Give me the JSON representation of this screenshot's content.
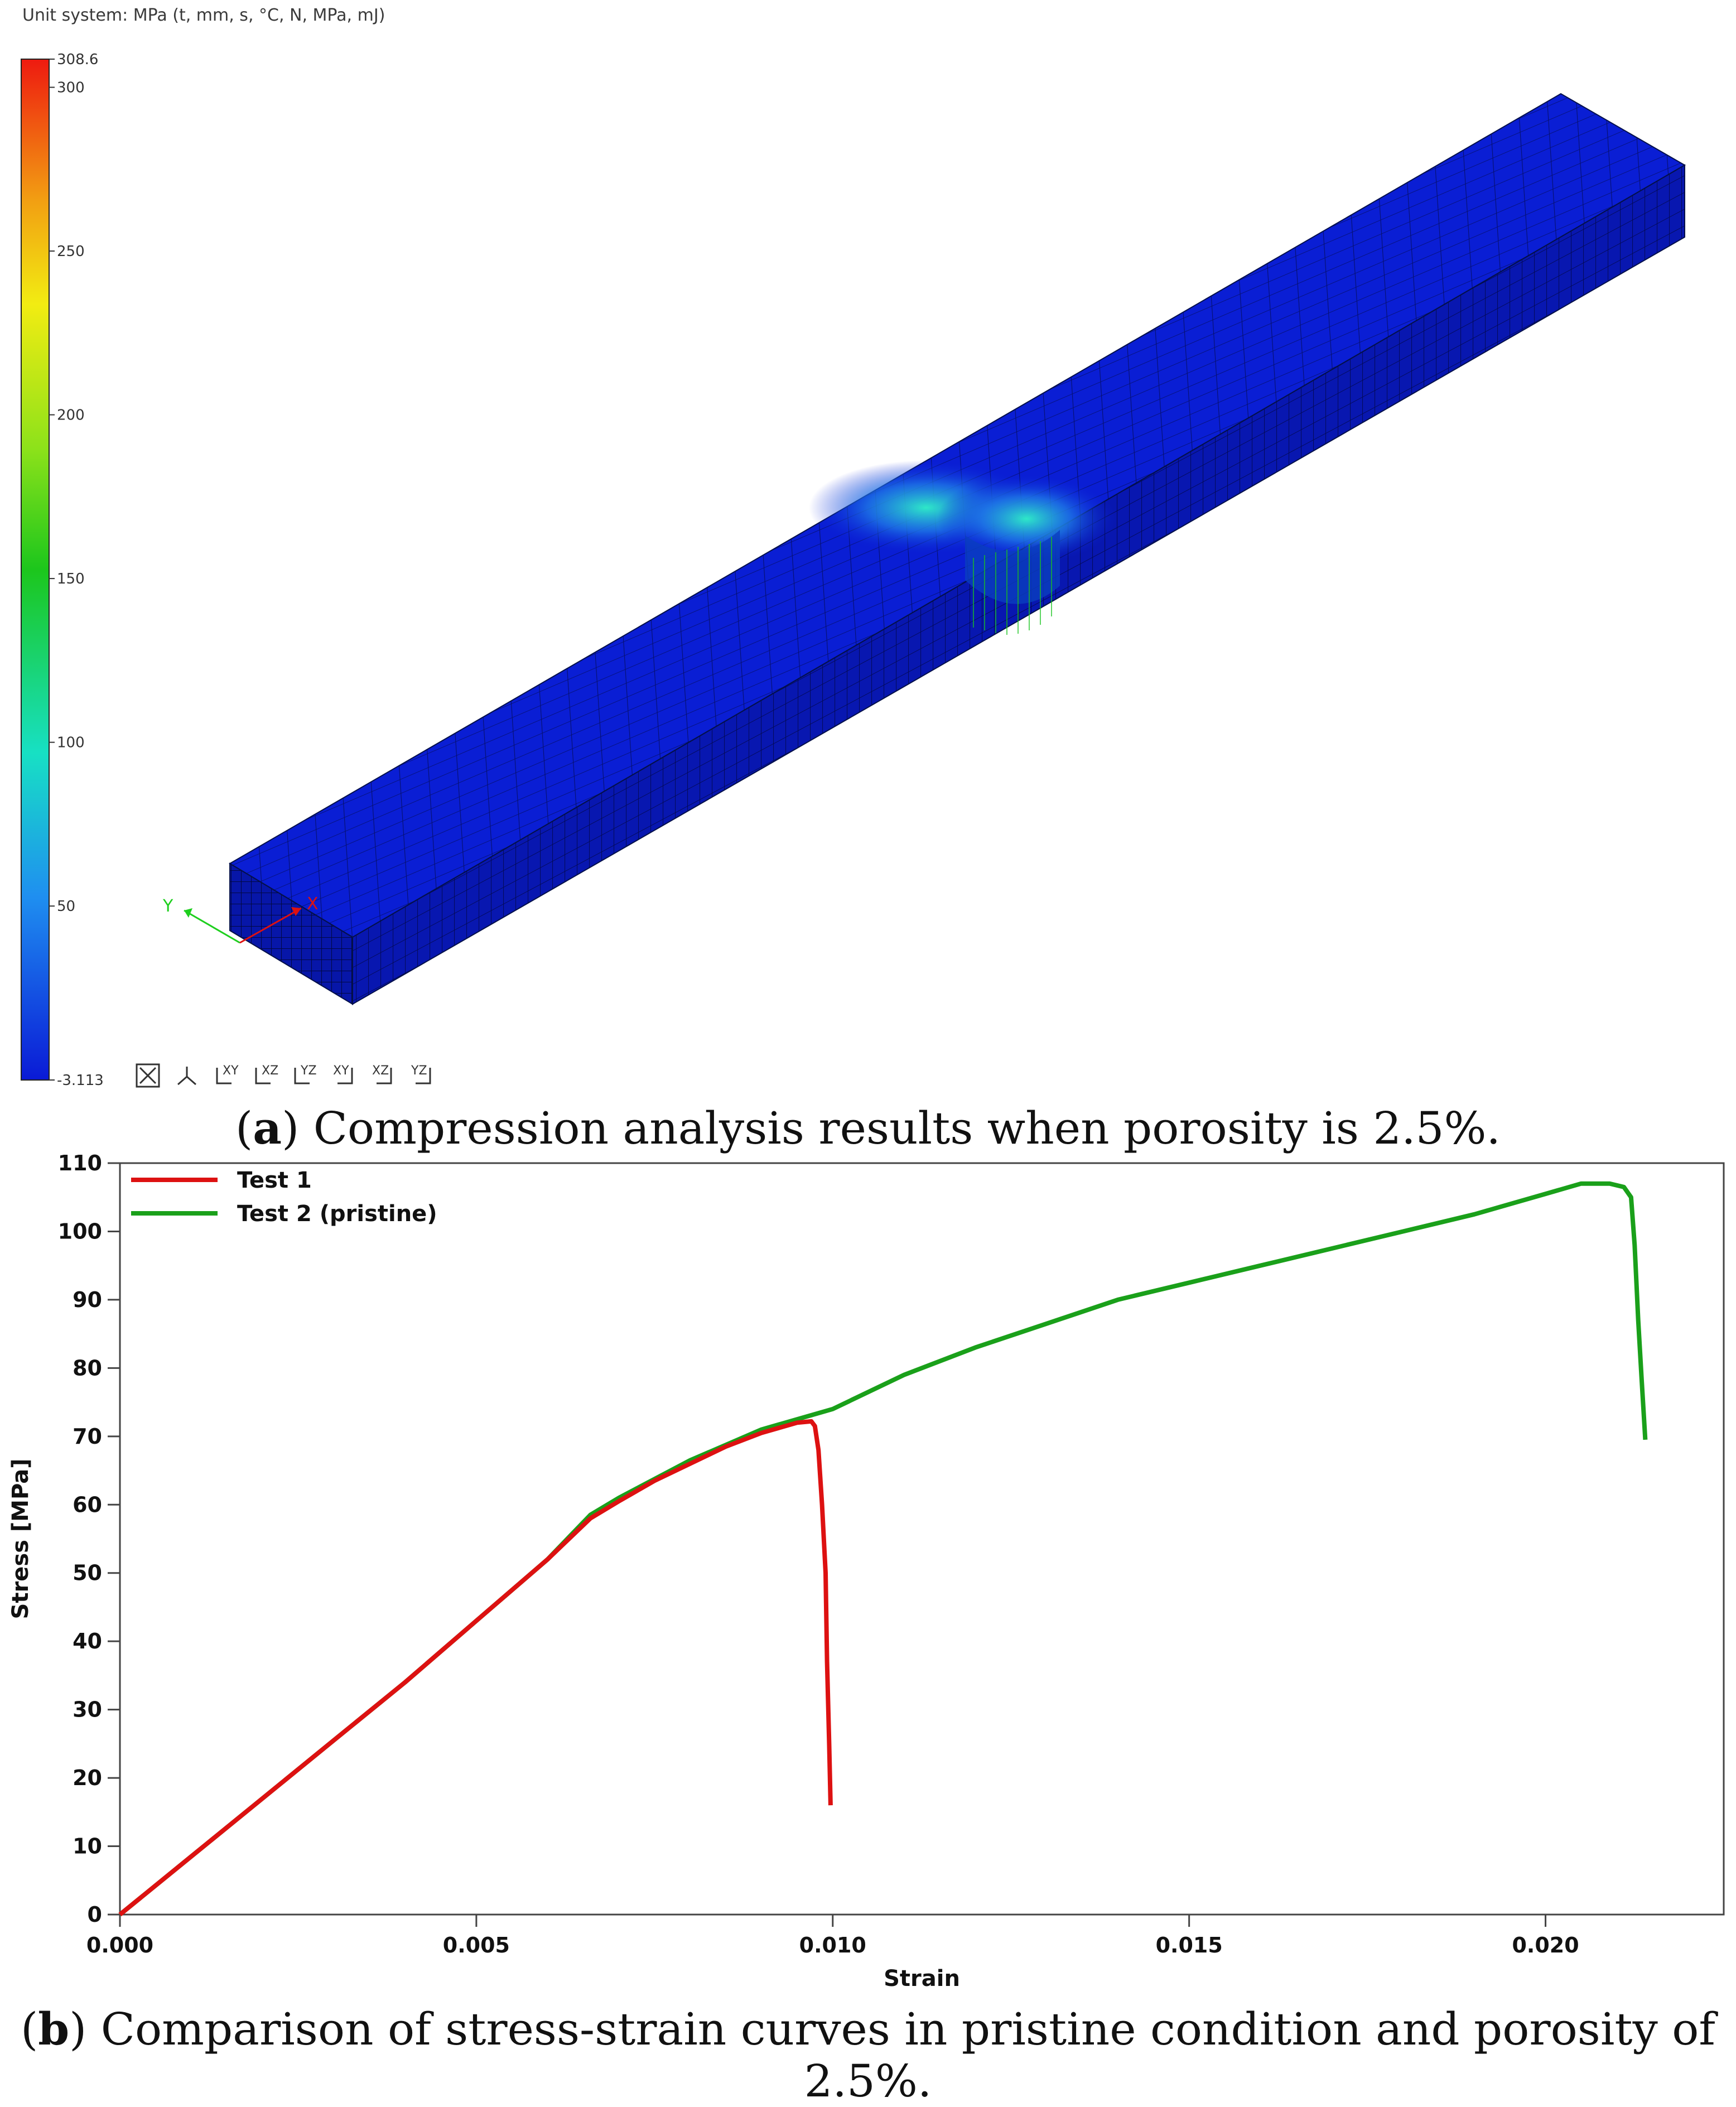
{
  "figure_a": {
    "unit_system": "Unit system: MPa (t, mm, s, °C, N, MPa, mJ)",
    "colorbar": {
      "max_label": "308.6",
      "min_label": "-3.113",
      "min": -3.113,
      "max": 308.6,
      "ticks": [
        "300",
        "250",
        "200",
        "150",
        "100",
        "50"
      ],
      "tick_values": [
        300,
        250,
        200,
        150,
        100,
        50
      ]
    },
    "axis_triad": {
      "x": "X",
      "y": "Y"
    },
    "view_icons": [
      "fit-view-icon",
      "isometric-view-icon",
      "xy-view-icon",
      "xz-view-icon",
      "yz-view-icon",
      "yx-view-icon",
      "zx-view-icon",
      "zy-view-icon"
    ],
    "view_icon_labels": [
      "XY",
      "XZ",
      "YZ",
      "XY",
      "XZ",
      "YZ"
    ],
    "caption_letter": "a",
    "caption_text": ") Compression analysis results when porosity is 2.5%."
  },
  "chart_data": {
    "type": "line",
    "xlabel": "Strain",
    "ylabel": "Stress [MPa]",
    "xlim": [
      0,
      0.0225
    ],
    "ylim": [
      0,
      110
    ],
    "xticks": [
      0,
      0.005,
      0.01,
      0.015,
      0.02
    ],
    "xtick_labels": [
      "0.000",
      "0.005",
      "0.010",
      "0.015",
      "0.020"
    ],
    "yticks": [
      0,
      10,
      20,
      30,
      40,
      50,
      60,
      70,
      80,
      90,
      100,
      110
    ],
    "ytick_labels": [
      "0",
      "10",
      "20",
      "30",
      "40",
      "50",
      "60",
      "70",
      "80",
      "90",
      "100",
      "110"
    ],
    "legend_position": "top-left",
    "grid": false,
    "series": [
      {
        "name": "Test 1",
        "color": "#dd1111",
        "x": [
          0.0,
          0.001,
          0.002,
          0.003,
          0.004,
          0.005,
          0.006,
          0.0066,
          0.007,
          0.0075,
          0.008,
          0.0085,
          0.009,
          0.0095,
          0.0097,
          0.00975,
          0.0098,
          0.00985,
          0.0099,
          0.00992,
          0.00995,
          0.00997
        ],
        "y": [
          0,
          8.5,
          17,
          25.5,
          34,
          43,
          52,
          58,
          60.5,
          63.5,
          66,
          68.5,
          70.5,
          72.0,
          72.2,
          71.5,
          68,
          60,
          50,
          37,
          25,
          16
        ]
      },
      {
        "name": "Test 2 (pristine)",
        "color": "#1aa01a",
        "x": [
          0.0,
          0.001,
          0.002,
          0.003,
          0.004,
          0.005,
          0.006,
          0.0066,
          0.007,
          0.008,
          0.009,
          0.01,
          0.011,
          0.012,
          0.013,
          0.014,
          0.015,
          0.016,
          0.017,
          0.018,
          0.019,
          0.02,
          0.0205,
          0.0209,
          0.0211,
          0.0212,
          0.02125,
          0.0213,
          0.02135,
          0.0214
        ],
        "y": [
          0,
          8.5,
          17,
          25.5,
          34,
          43,
          52,
          58.5,
          61,
          66.5,
          71,
          74,
          79,
          83,
          86.5,
          90,
          92.5,
          95,
          97.5,
          100,
          102.5,
          105.5,
          107,
          107,
          106.5,
          105,
          98,
          87,
          78,
          69.5
        ]
      }
    ]
  },
  "figure_b": {
    "caption_letter": "b",
    "caption_text": ") Comparison of stress-strain curves in pristine condition and porosity of 2.5%."
  }
}
